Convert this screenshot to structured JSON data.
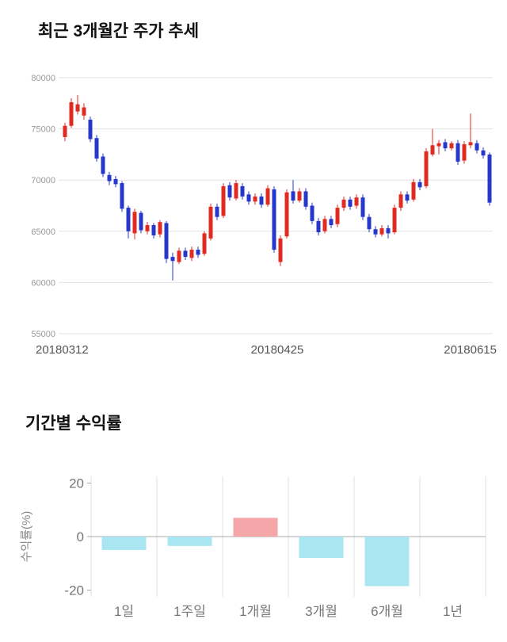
{
  "chart_data": [
    {
      "type": "candlestick",
      "title": "최근 3개월간 주가 추세",
      "ylim": [
        55000,
        80000
      ],
      "yticks": [
        80000,
        75000,
        70000,
        65000,
        60000,
        55000
      ],
      "xtick_labels": [
        "20180312",
        "20180425",
        "20180615"
      ],
      "grid": true,
      "up_color": "#e12b20",
      "down_color": "#2637cc",
      "axis_label_color": "#999999",
      "date_label_color": "#555555",
      "candle_columns": [
        "open",
        "high",
        "low",
        "close"
      ],
      "candles": [
        [
          74200,
          75600,
          73800,
          75300
        ],
        [
          75300,
          78000,
          75100,
          77600
        ],
        [
          76700,
          78300,
          76400,
          77400
        ],
        [
          76300,
          77500,
          75900,
          77100
        ],
        [
          75900,
          76200,
          73700,
          74000
        ],
        [
          74100,
          74400,
          71800,
          72100
        ],
        [
          72300,
          72600,
          70300,
          70600
        ],
        [
          70500,
          70800,
          69500,
          69900
        ],
        [
          70100,
          70400,
          69300,
          69600
        ],
        [
          69700,
          69900,
          66900,
          67200
        ],
        [
          67300,
          67500,
          64300,
          65000
        ],
        [
          64800,
          67200,
          64200,
          66900
        ],
        [
          66800,
          67000,
          64800,
          65100
        ],
        [
          65000,
          65900,
          64700,
          65600
        ],
        [
          65600,
          65800,
          64300,
          64600
        ],
        [
          64700,
          66100,
          64400,
          65900
        ],
        [
          65800,
          66000,
          61900,
          62300
        ],
        [
          62500,
          62900,
          60200,
          62100
        ],
        [
          62000,
          63400,
          61800,
          63100
        ],
        [
          63100,
          63400,
          62200,
          62500
        ],
        [
          62400,
          63500,
          62100,
          63200
        ],
        [
          63200,
          63500,
          62400,
          62700
        ],
        [
          62800,
          65000,
          62600,
          64800
        ],
        [
          64300,
          67700,
          64100,
          67400
        ],
        [
          67400,
          67700,
          66100,
          66400
        ],
        [
          66500,
          69700,
          66300,
          69400
        ],
        [
          69500,
          69800,
          68000,
          68300
        ],
        [
          68200,
          70000,
          68000,
          69700
        ],
        [
          69400,
          69700,
          68100,
          68400
        ],
        [
          68600,
          68900,
          67600,
          67900
        ],
        [
          67900,
          68700,
          67600,
          68400
        ],
        [
          68400,
          68700,
          67300,
          67600
        ],
        [
          67600,
          69500,
          67400,
          69200
        ],
        [
          69100,
          69400,
          62900,
          63200
        ],
        [
          62000,
          64600,
          61600,
          64300
        ],
        [
          64500,
          69100,
          64300,
          68800
        ],
        [
          68900,
          70000,
          67700,
          68000
        ],
        [
          68000,
          69200,
          67800,
          68900
        ],
        [
          68900,
          69200,
          67100,
          67400
        ],
        [
          67500,
          67800,
          65700,
          66000
        ],
        [
          66000,
          66300,
          64600,
          64900
        ],
        [
          65000,
          66500,
          64800,
          66200
        ],
        [
          66200,
          66500,
          65300,
          65600
        ],
        [
          65700,
          67600,
          65400,
          67300
        ],
        [
          67300,
          68400,
          67000,
          68100
        ],
        [
          68100,
          68400,
          67100,
          67400
        ],
        [
          67500,
          68600,
          67200,
          68300
        ],
        [
          68300,
          68600,
          66100,
          66400
        ],
        [
          66400,
          66700,
          64900,
          65200
        ],
        [
          65200,
          65500,
          64400,
          64700
        ],
        [
          64700,
          65600,
          64500,
          65300
        ],
        [
          65300,
          65600,
          64300,
          64800
        ],
        [
          64900,
          67600,
          64700,
          67300
        ],
        [
          67300,
          68900,
          67000,
          68600
        ],
        [
          68600,
          68900,
          67700,
          68000
        ],
        [
          68100,
          70100,
          67900,
          69800
        ],
        [
          69800,
          70100,
          69000,
          69300
        ],
        [
          69400,
          73100,
          69200,
          72800
        ],
        [
          72500,
          75000,
          72300,
          73400
        ],
        [
          73300,
          73900,
          72500,
          73600
        ],
        [
          73700,
          74000,
          72800,
          73100
        ],
        [
          73100,
          73800,
          72900,
          73600
        ],
        [
          73600,
          73900,
          71500,
          71800
        ],
        [
          71900,
          73800,
          71600,
          73500
        ],
        [
          73400,
          76500,
          73100,
          73700
        ],
        [
          73600,
          73900,
          72600,
          72900
        ],
        [
          72900,
          73200,
          72100,
          72400
        ],
        [
          72500,
          72700,
          67500,
          67800
        ]
      ]
    },
    {
      "type": "bar",
      "title": "기간별 수익률",
      "categories": [
        "1일",
        "1주일",
        "1개월",
        "3개월",
        "6개월",
        "1년"
      ],
      "values": [
        -5,
        -3.5,
        7,
        -8,
        -18.5,
        0
      ],
      "ylabel": "수익률(%)",
      "yticks": [
        20,
        0,
        -20
      ],
      "ylim": [
        -22.5,
        22.5
      ],
      "grid": "vertical",
      "positive_color": "#f5a6a9",
      "negative_color": "#a9e6f2",
      "axis_label_color": "#777777",
      "zero_line_color": "#aaaaaa"
    }
  ]
}
